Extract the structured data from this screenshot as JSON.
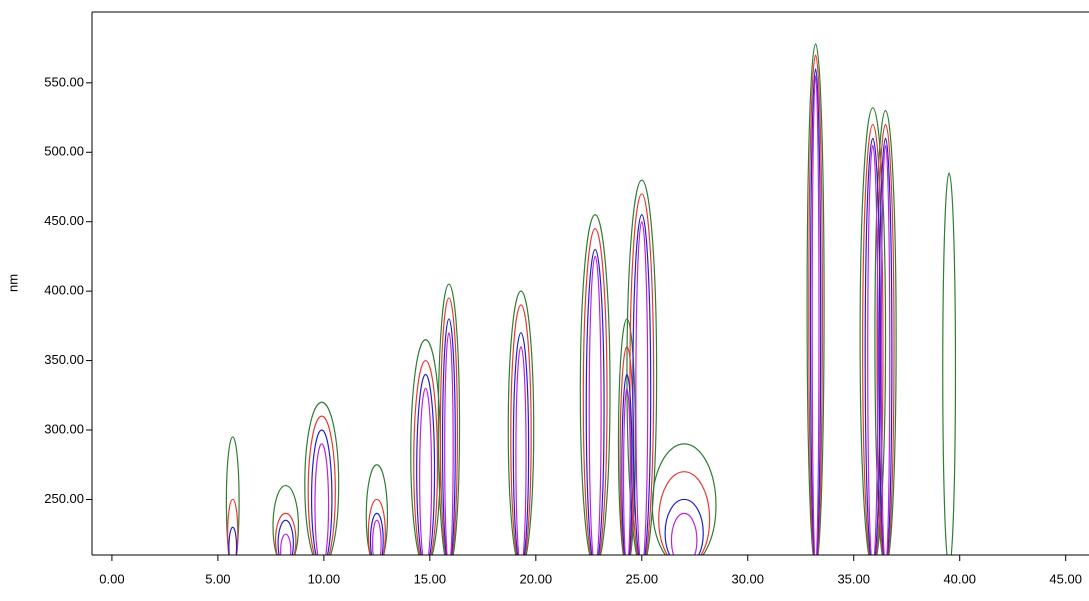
{
  "chart_data": {
    "type": "contour",
    "ylabel": "nm",
    "xlim": [
      -0.94,
      46.1
    ],
    "ylim": [
      210,
      601
    ],
    "xticks": [
      {
        "value": 0,
        "label": "0.00"
      },
      {
        "value": 5,
        "label": "5.00"
      },
      {
        "value": 10,
        "label": "10.00"
      },
      {
        "value": 15,
        "label": "15.00"
      },
      {
        "value": 20,
        "label": "20.00"
      },
      {
        "value": 25,
        "label": "25.00"
      },
      {
        "value": 30,
        "label": "30.00"
      },
      {
        "value": 35,
        "label": "35.00"
      },
      {
        "value": 40,
        "label": "40.00"
      },
      {
        "value": 45,
        "label": "45.00"
      }
    ],
    "yticks": [
      {
        "value": 250,
        "label": "250.00"
      },
      {
        "value": 300,
        "label": "300.00"
      },
      {
        "value": 350,
        "label": "350.00"
      },
      {
        "value": 400,
        "label": "400.00"
      },
      {
        "value": 450,
        "label": "450.00"
      },
      {
        "value": 500,
        "label": "500.00"
      },
      {
        "value": 550,
        "label": "550.00"
      }
    ],
    "x": [
      5.7,
      8.2,
      9.9,
      12.5,
      14.8,
      15.9,
      19.3,
      22.8,
      24.3,
      25.0,
      27.0,
      33.2,
      35.9,
      36.5,
      39.5
    ],
    "widths": [
      0.3,
      0.6,
      0.8,
      0.5,
      0.7,
      0.5,
      0.6,
      0.7,
      0.4,
      0.7,
      1.5,
      0.4,
      0.6,
      0.5,
      0.3
    ],
    "series": [
      {
        "color": "#2e7d32",
        "values": [
          295,
          260,
          320,
          275,
          365,
          405,
          400,
          455,
          380,
          480,
          290,
          578,
          532,
          530,
          485
        ]
      },
      {
        "color": "#e53935",
        "values": [
          250,
          240,
          310,
          250,
          350,
          395,
          390,
          445,
          360,
          470,
          270,
          570,
          520,
          520,
          null
        ]
      },
      {
        "color": "#1e22c8",
        "values": [
          230,
          235,
          300,
          240,
          340,
          380,
          370,
          430,
          340,
          455,
          250,
          560,
          510,
          510,
          null
        ]
      },
      {
        "color": "#c020e0",
        "values": [
          null,
          225,
          290,
          235,
          330,
          370,
          360,
          425,
          330,
          450,
          240,
          555,
          505,
          505,
          null
        ]
      }
    ]
  }
}
